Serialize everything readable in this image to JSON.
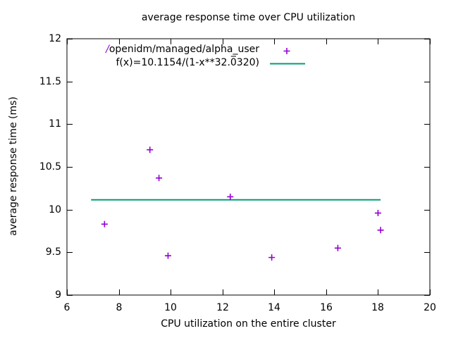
{
  "title": "average response time over CPU utilization",
  "axes": {
    "x_label": "CPU utilization on the entire cluster",
    "y_label": "average response time (ms)"
  },
  "legend": {
    "series_prefix": "/",
    "series_label": "openidm/managed/alpha_user",
    "fit_label": "f(x)=10.1154/(1-x**32.0̅320)"
  },
  "chart_data": {
    "type": "scatter",
    "title": "average response time over CPU utilization",
    "xlabel": "CPU utilization on the entire cluster",
    "ylabel": "average response time (ms)",
    "xlim": [
      6,
      20
    ],
    "ylim": [
      9,
      12
    ],
    "xticks": [
      "6",
      "8",
      "10",
      "12",
      "14",
      "16",
      "18",
      "20"
    ],
    "yticks": [
      "9",
      "9.5",
      "10",
      "10.5",
      "11",
      "11.5",
      "12"
    ],
    "grid": false,
    "legend_position": "top-left-inside",
    "background": "#ffffff",
    "border_color": "#000000",
    "series": [
      {
        "name": "/openidm/managed/alpha_user",
        "type": "points",
        "marker": "plus",
        "color": "#9400d3",
        "points": [
          [
            7.45,
            9.83
          ],
          [
            9.2,
            10.7
          ],
          [
            9.55,
            10.37
          ],
          [
            9.9,
            9.46
          ],
          [
            12.3,
            10.15
          ],
          [
            13.9,
            9.44
          ],
          [
            16.45,
            9.55
          ],
          [
            18.0,
            9.96
          ],
          [
            18.1,
            9.76
          ]
        ]
      },
      {
        "name": "f(x)=10.1154/(1-x**32.0̅320)",
        "type": "fit-line",
        "color": "#009e73",
        "x_start": 6.93,
        "x_end": 18.1,
        "y": 10.115
      }
    ]
  }
}
